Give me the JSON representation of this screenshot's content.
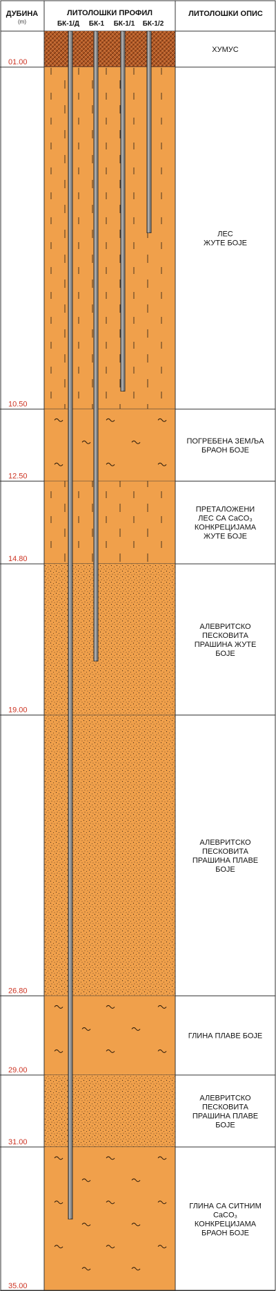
{
  "header": {
    "depth_title": "ДУБИНА",
    "depth_unit": "(m)",
    "profile_title": "ЛИТОЛОШКИ ПРОФИЛ",
    "description_title": "ЛИТОЛОШКИ ОПИС",
    "boreholes": [
      "БК-1/Д",
      "БК-1",
      "БК-1/1",
      "БК-1/2"
    ]
  },
  "colors": {
    "orange": "#f0a04b",
    "humus": "#b45a26",
    "depth_text": "#cc3322",
    "lines": "#333333"
  },
  "layers": [
    {
      "top": 0.0,
      "bottom": 1.0,
      "depth_label": "01.00",
      "pattern": "humus",
      "lines": [
        "ХУМУС"
      ]
    },
    {
      "top": 1.0,
      "bottom": 10.5,
      "depth_label": "10.50",
      "pattern": "loess",
      "lines": [
        "ЛЕС",
        "ЖУТЕ БОЈЕ"
      ]
    },
    {
      "top": 10.5,
      "bottom": 12.5,
      "depth_label": "12.50",
      "pattern": "tilde",
      "lines": [
        "ПОГРЕБЕНА ЗЕМЉА",
        "БРАОН БОЈЕ"
      ]
    },
    {
      "top": 12.5,
      "bottom": 14.8,
      "depth_label": "14.80",
      "pattern": "loess",
      "lines": [
        "ПРЕТАЛОЖЕНИ",
        "ЛЕС СА CaCO₃",
        "КОНКРЕЦИЈАМА",
        "ЖУТЕ БОЈЕ"
      ]
    },
    {
      "top": 14.8,
      "bottom": 19.0,
      "depth_label": "19.00",
      "pattern": "dots",
      "lines": [
        "АЛЕВРИТСКО",
        "ПЕСКОВИТА",
        "ПРАШИНА ЖУТЕ",
        "БОЈЕ"
      ]
    },
    {
      "top": 19.0,
      "bottom": 26.8,
      "depth_label": "26.80",
      "pattern": "dots",
      "lines": [
        "АЛЕВРИТСКО",
        "ПЕСКОВИТА",
        "ПРАШИНА ПЛАВЕ",
        "БОЈЕ"
      ]
    },
    {
      "top": 26.8,
      "bottom": 29.0,
      "depth_label": "29.00",
      "pattern": "tilde",
      "lines": [
        "ГЛИНА ПЛАВЕ БОЈЕ"
      ]
    },
    {
      "top": 29.0,
      "bottom": 31.0,
      "depth_label": "31.00",
      "pattern": "dots",
      "lines": [
        "АЛЕВРИТСКО",
        "ПЕСКОВИТА",
        "ПРАШИНА ПЛАВЕ",
        "БОЈЕ"
      ]
    },
    {
      "top": 31.0,
      "bottom": 35.0,
      "depth_label": "35.00",
      "pattern": "tilde",
      "lines": [
        "ГЛИНА СА СИТНИМ",
        "CaCO₃",
        "КОНКРЕЦИЈАМА",
        "БРАОН БОЈЕ"
      ]
    }
  ],
  "wells": [
    {
      "name": "БК-1/Д",
      "bottom_depth": 33.0
    },
    {
      "name": "БК-1",
      "bottom_depth": 17.5
    },
    {
      "name": "БК-1/1",
      "bottom_depth": 10.0
    },
    {
      "name": "БК-1/2",
      "bottom_depth": 5.6
    }
  ]
}
